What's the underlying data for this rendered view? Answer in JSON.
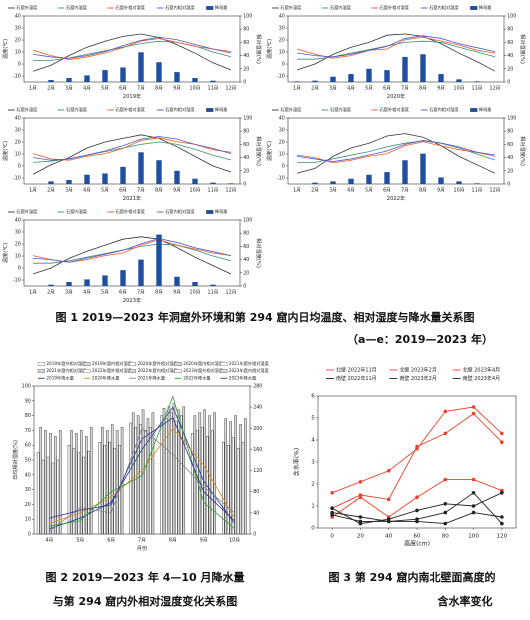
{
  "chart_data": [
    {
      "type": "line",
      "x_label": "2019年",
      "y_label": "温度(℃)",
      "y2_label": "相对湿度(%)",
      "categories": [
        "1月",
        "2月",
        "3月",
        "4月",
        "5月",
        "6月",
        "7月",
        "8月",
        "9月",
        "10月",
        "11月",
        "12月"
      ],
      "ylim": [
        -15,
        40
      ],
      "yticks": [
        -10,
        0,
        10,
        20,
        30,
        40
      ],
      "y2lim": [
        0,
        100
      ],
      "y2ticks": [
        0,
        20,
        40,
        60,
        80,
        100
      ],
      "series": [
        {
          "name": "石窟外温度",
          "color": "#333333",
          "values": [
            -6,
            -1,
            7,
            14,
            19,
            23,
            25,
            22,
            16,
            9,
            1,
            -5
          ]
        },
        {
          "name": "石窟内温度",
          "color": "#3a8f7a",
          "values": [
            3,
            3,
            5,
            8,
            11,
            14,
            17,
            19,
            18,
            15,
            10,
            6
          ]
        },
        {
          "name": "石窟外相对湿度",
          "color": "#f05a28",
          "axis": "y2",
          "values": [
            48,
            40,
            34,
            38,
            44,
            52,
            62,
            66,
            60,
            54,
            50,
            46
          ]
        },
        {
          "name": "石窟内相对湿度",
          "color": "#5555cc",
          "axis": "y2",
          "values": [
            42,
            38,
            36,
            40,
            46,
            55,
            63,
            68,
            64,
            57,
            50,
            44
          ]
        },
        {
          "name": "降雨量",
          "color": "#1f4fa0",
          "axis": "y2",
          "mark": "bar",
          "values": [
            0,
            3,
            6,
            10,
            18,
            22,
            45,
            30,
            15,
            6,
            2,
            0
          ]
        }
      ]
    },
    {
      "type": "line",
      "x_label": "2020年",
      "y_label": "温度(℃)",
      "y2_label": "相对湿度(%)",
      "categories": [
        "1月",
        "2月",
        "3月",
        "4月",
        "5月",
        "6月",
        "7月",
        "8月",
        "9月",
        "10月",
        "11月",
        "12月"
      ],
      "ylim": [
        -15,
        40
      ],
      "yticks": [
        -10,
        0,
        10,
        20,
        30,
        40
      ],
      "y2lim": [
        0,
        100
      ],
      "y2ticks": [
        0,
        20,
        40,
        60,
        80,
        100
      ],
      "series": [
        {
          "name": "石窟外温度",
          "color": "#333333",
          "values": [
            -5,
            0,
            8,
            14,
            18,
            24,
            25,
            23,
            17,
            9,
            2,
            -6
          ]
        },
        {
          "name": "石窟内温度",
          "color": "#3a8f7a",
          "values": [
            4,
            4,
            6,
            9,
            12,
            15,
            18,
            19,
            18,
            14,
            10,
            6
          ]
        },
        {
          "name": "石窟外相对湿度",
          "color": "#f05a28",
          "axis": "y2",
          "values": [
            50,
            42,
            36,
            40,
            48,
            50,
            64,
            68,
            62,
            56,
            48,
            44
          ]
        },
        {
          "name": "石窟内相对湿度",
          "color": "#5555cc",
          "axis": "y2",
          "values": [
            44,
            40,
            38,
            42,
            48,
            54,
            66,
            70,
            66,
            58,
            52,
            46
          ]
        },
        {
          "name": "降雨量",
          "color": "#1f4fa0",
          "axis": "y2",
          "mark": "bar",
          "values": [
            1,
            2,
            8,
            12,
            20,
            18,
            38,
            42,
            12,
            4,
            1,
            0
          ]
        }
      ]
    },
    {
      "type": "line",
      "x_label": "2021年",
      "y_label": "温度(℃)",
      "y2_label": "相对湿度(%)",
      "categories": [
        "1月",
        "2月",
        "3月",
        "4月",
        "5月",
        "6月",
        "7月",
        "8月",
        "9月",
        "10月",
        "11月",
        "12月"
      ],
      "ylim": [
        -15,
        40
      ],
      "yticks": [
        -10,
        0,
        10,
        20,
        30,
        40
      ],
      "y2lim": [
        0,
        100
      ],
      "y2ticks": [
        0,
        20,
        40,
        60,
        80,
        100
      ],
      "series": [
        {
          "name": "石窟外温度",
          "color": "#333333",
          "values": [
            -7,
            1,
            7,
            15,
            20,
            23,
            26,
            23,
            16,
            8,
            0,
            -5
          ]
        },
        {
          "name": "石窟内温度",
          "color": "#3a8f7a",
          "values": [
            3,
            4,
            6,
            9,
            12,
            15,
            18,
            20,
            18,
            14,
            9,
            5
          ]
        },
        {
          "name": "石窟外相对湿度",
          "color": "#f05a28",
          "axis": "y2",
          "values": [
            46,
            38,
            36,
            42,
            46,
            54,
            66,
            70,
            64,
            60,
            52,
            48
          ]
        },
        {
          "name": "石窟内相对湿度",
          "color": "#5555cc",
          "axis": "y2",
          "values": [
            40,
            36,
            38,
            44,
            50,
            58,
            68,
            72,
            68,
            60,
            54,
            46
          ]
        },
        {
          "name": "降雨量",
          "color": "#1f4fa0",
          "axis": "y2",
          "mark": "bar",
          "values": [
            0,
            4,
            6,
            14,
            16,
            26,
            48,
            36,
            20,
            8,
            2,
            1
          ]
        }
      ]
    },
    {
      "type": "line",
      "x_label": "2022年",
      "y_label": "温度(℃)",
      "y2_label": "相对湿度(%)",
      "categories": [
        "1月",
        "2月",
        "3月",
        "4月",
        "5月",
        "6月",
        "7月",
        "8月",
        "9月",
        "10月",
        "11月",
        "12月"
      ],
      "ylim": [
        -15,
        40
      ],
      "yticks": [
        -10,
        0,
        10,
        20,
        30,
        40
      ],
      "y2lim": [
        0,
        100
      ],
      "y2ticks": [
        0,
        20,
        40,
        60,
        80,
        100
      ],
      "series": [
        {
          "name": "石窟外温度",
          "color": "#333333",
          "values": [
            -6,
            -2,
            8,
            15,
            19,
            25,
            27,
            24,
            17,
            8,
            1,
            -6
          ]
        },
        {
          "name": "石窟内温度",
          "color": "#3a8f7a",
          "values": [
            3,
            3,
            6,
            9,
            12,
            16,
            19,
            21,
            19,
            15,
            10,
            5
          ]
        },
        {
          "name": "石窟外相对湿度",
          "color": "#f05a28",
          "axis": "y2",
          "values": [
            44,
            40,
            32,
            36,
            42,
            46,
            58,
            64,
            58,
            52,
            48,
            42
          ]
        },
        {
          "name": "石窟内相对湿度",
          "color": "#5555cc",
          "axis": "y2",
          "values": [
            42,
            38,
            34,
            38,
            44,
            50,
            60,
            66,
            62,
            56,
            48,
            44
          ]
        },
        {
          "name": "降雨量",
          "color": "#1f4fa0",
          "axis": "y2",
          "mark": "bar",
          "values": [
            0,
            2,
            4,
            8,
            14,
            18,
            36,
            46,
            10,
            4,
            1,
            0
          ]
        }
      ]
    },
    {
      "type": "line",
      "x_label": "2023年",
      "y_label": "温度(℃)",
      "y2_label": "相对湿度(%)",
      "categories": [
        "1月",
        "2月",
        "3月",
        "4月",
        "5月",
        "6月",
        "7月",
        "8月",
        "9月",
        "10月",
        "11月",
        "12月"
      ],
      "ylim": [
        -15,
        40
      ],
      "yticks": [
        -10,
        0,
        10,
        20,
        30,
        40
      ],
      "y2lim": [
        0,
        100
      ],
      "y2ticks": [
        0,
        20,
        40,
        60,
        80,
        100
      ],
      "series": [
        {
          "name": "石窟外温度",
          "color": "#333333",
          "values": [
            -5,
            0,
            8,
            14,
            19,
            24,
            26,
            24,
            17,
            9,
            2,
            -5
          ]
        },
        {
          "name": "石窟内温度",
          "color": "#3a8f7a",
          "values": [
            4,
            4,
            6,
            9,
            12,
            15,
            18,
            20,
            19,
            15,
            10,
            6
          ]
        },
        {
          "name": "石窟外相对湿度",
          "color": "#f05a28",
          "axis": "y2",
          "values": [
            46,
            40,
            36,
            40,
            46,
            50,
            62,
            70,
            62,
            56,
            50,
            46
          ]
        },
        {
          "name": "石窟内相对湿度",
          "color": "#5555cc",
          "axis": "y2",
          "values": [
            42,
            40,
            36,
            42,
            48,
            54,
            64,
            72,
            66,
            58,
            52,
            46
          ]
        },
        {
          "name": "降雨量",
          "color": "#1f4fa0",
          "axis": "y2",
          "mark": "bar",
          "values": [
            0,
            2,
            6,
            10,
            16,
            24,
            40,
            78,
            14,
            6,
            2,
            0
          ]
        }
      ]
    },
    {
      "type": "bar",
      "x_label": "月份",
      "y_label": "日均相对湿度(%)",
      "categories": [
        "4月",
        "5月",
        "6月",
        "7月",
        "8月",
        "9月",
        "10月"
      ],
      "ylim": [
        0,
        100
      ],
      "yticks": [
        0,
        10,
        20,
        30,
        40,
        50,
        60,
        70,
        80,
        90,
        100
      ],
      "y2lim": [
        0,
        280
      ],
      "y2ticks": [
        0,
        40,
        80,
        120,
        160,
        200,
        240,
        280
      ],
      "series": [
        {
          "name": "2019年窟外相对湿度",
          "color": "#ffffff",
          "values": [
            55,
            60,
            62,
            75,
            80,
            68,
            62
          ]
        },
        {
          "name": "2019年窟内相对湿度",
          "color": "#d9d9d9",
          "values": [
            72,
            70,
            72,
            82,
            85,
            80,
            78
          ]
        },
        {
          "name": "2020年窟外相对湿度",
          "color": "#ffffff",
          "values": [
            50,
            58,
            60,
            72,
            78,
            70,
            60
          ]
        },
        {
          "name": "2020年窟内相对湿度",
          "color": "#d9d9d9",
          "values": [
            70,
            68,
            70,
            80,
            86,
            82,
            76
          ]
        },
        {
          "name": "2021年窟外相对湿度",
          "color": "#ffffff",
          "values": [
            52,
            55,
            62,
            74,
            82,
            72,
            65
          ]
        },
        {
          "name": "2021年窟内相对湿度",
          "color": "#d9d9d9",
          "values": [
            68,
            70,
            74,
            84,
            88,
            84,
            80
          ]
        },
        {
          "name": "2022年窟外相对湿度",
          "color": "#ffffff",
          "values": [
            48,
            52,
            58,
            70,
            76,
            66,
            58
          ]
        },
        {
          "name": "2022年窟内相对湿度",
          "color": "#d9d9d9",
          "values": [
            66,
            66,
            70,
            78,
            84,
            80,
            74
          ]
        },
        {
          "name": "2023年窟外相对湿度",
          "color": "#ffffff",
          "values": [
            50,
            56,
            60,
            72,
            80,
            70,
            62
          ]
        },
        {
          "name": "2023年窟内相对湿度",
          "color": "#d9d9d9",
          "values": [
            70,
            72,
            72,
            82,
            86,
            82,
            78
          ]
        },
        {
          "name": "2019年降水量",
          "color": "#1f3d99",
          "axis": "y2",
          "mark": "line",
          "values": [
            10,
            30,
            60,
            160,
            240,
            100,
            20
          ]
        },
        {
          "name": "2020年降水量",
          "color": "#e08a1e",
          "axis": "y2",
          "mark": "line",
          "values": [
            20,
            40,
            70,
            120,
            200,
            130,
            30
          ]
        },
        {
          "name": "2021年降水量",
          "color": "#888888",
          "axis": "y2",
          "mark": "line",
          "values": [
            5,
            50,
            40,
            200,
            150,
            90,
            40
          ]
        },
        {
          "name": "2022年降水量",
          "color": "#2ca02c",
          "axis": "y2",
          "mark": "line",
          "values": [
            15,
            25,
            80,
            110,
            260,
            60,
            10
          ]
        },
        {
          "name": "2023年降水量",
          "color": "#333399",
          "axis": "y2",
          "mark": "line",
          "values": [
            30,
            45,
            55,
            180,
            220,
            80,
            25
          ]
        }
      ]
    },
    {
      "type": "line",
      "x_label": "高度(cm)",
      "y_label": "含水率(%)",
      "markers": true,
      "x": [
        0,
        20,
        40,
        60,
        80,
        100,
        120
      ],
      "xlim": [
        -10,
        130
      ],
      "xticks": [
        0,
        20,
        40,
        60,
        80,
        100,
        120
      ],
      "ylim": [
        0,
        6
      ],
      "yticks": [
        0,
        1,
        2,
        3,
        4,
        5,
        6
      ],
      "series": [
        {
          "name": "北壁 2022年11月",
          "color": "#e8432b",
          "values": [
            1.6,
            2.1,
            2.6,
            3.6,
            5.3,
            5.5,
            4.3
          ]
        },
        {
          "name": "北壁 2023年2月",
          "color": "#e8432b",
          "values": [
            0.9,
            1.5,
            1.3,
            3.7,
            4.3,
            5.2,
            3.9
          ]
        },
        {
          "name": "北壁 2023年4月",
          "color": "#e8432b",
          "values": [
            0.5,
            1.4,
            0.5,
            1.4,
            2.2,
            2.2,
            1.7
          ]
        },
        {
          "name": "南壁 2022年11月",
          "color": "#222222",
          "values": [
            0.9,
            0.2,
            0.4,
            0.8,
            1.1,
            1.0,
            1.6
          ]
        },
        {
          "name": "南壁 2023年2月",
          "color": "#222222",
          "values": [
            0.7,
            0.5,
            0.3,
            0.4,
            0.7,
            1.6,
            0.2
          ]
        },
        {
          "name": "南壁 2023年4月",
          "color": "#222222",
          "values": [
            0.6,
            0.3,
            0.3,
            0.3,
            0.2,
            0.7,
            0.5
          ]
        }
      ]
    }
  ],
  "captions": {
    "figure1": [
      "图 1 2019—2023 年洞窟外环境和第 294 窟内日均温度、相对湿度与降水量关系图",
      "（a—e：2019—2023 年）"
    ],
    "figure2": [
      "图 2 2019—2023 年 4—10 月降水量",
      "与第 294 窟内外相对湿度变化关系图"
    ],
    "figure3": [
      "图 3 第 294 窟内南北壁面高度的",
      "含水率变化"
    ]
  }
}
